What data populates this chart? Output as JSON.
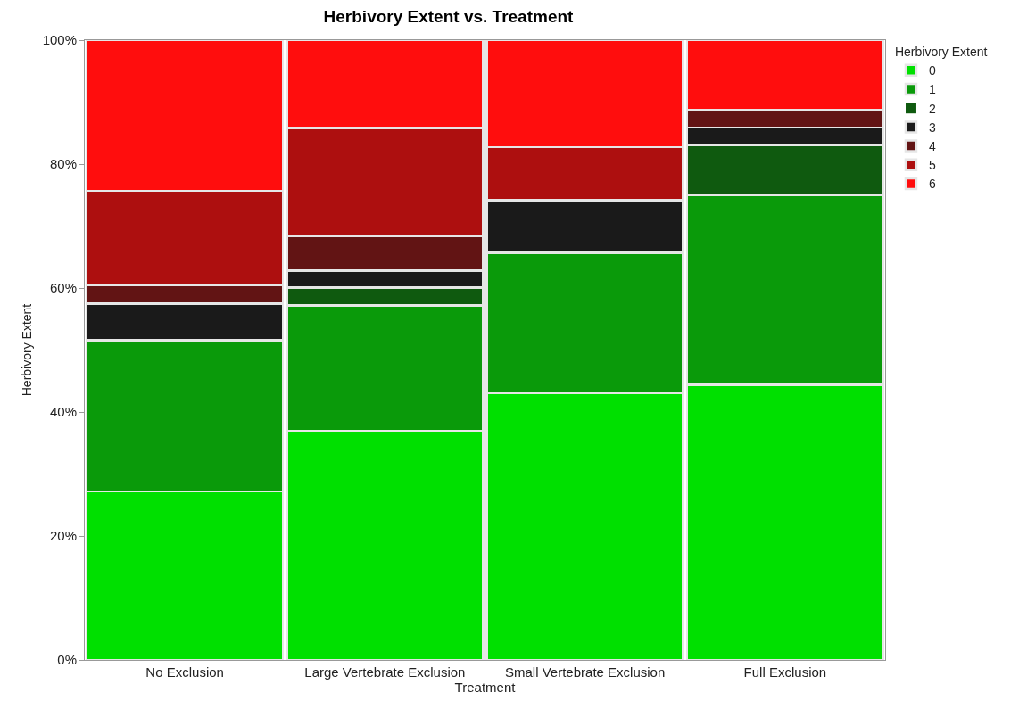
{
  "chart_data": {
    "type": "bar",
    "stacked": true,
    "title": "Herbivory Extent vs. Treatment",
    "xlabel": "Treatment",
    "ylabel": "Herbivory Extent",
    "legend_title": "Herbivory Extent",
    "legend": "top right",
    "grid": false,
    "categories": [
      "No Exclusion",
      "Large Vertebrate Exclusion",
      "Small Vertebrate Exclusion",
      "Full Exclusion"
    ],
    "ylim": [
      0,
      100
    ],
    "yticks": [
      {
        "value": 0,
        "label": "0%"
      },
      {
        "value": 20,
        "label": "20%"
      },
      {
        "value": 40,
        "label": "40%"
      },
      {
        "value": 60,
        "label": "60%"
      },
      {
        "value": 80,
        "label": "80%"
      },
      {
        "value": 100,
        "label": "100%"
      }
    ],
    "series": [
      {
        "name": "0",
        "color": "#00e000",
        "values": [
          27.2,
          37.0,
          43.0,
          44.4
        ]
      },
      {
        "name": "1",
        "color": "#0a9a0a",
        "values": [
          24.4,
          20.2,
          22.7,
          30.6
        ]
      },
      {
        "name": "2",
        "color": "#0f5a0f",
        "values": [
          0,
          2.9,
          0,
          8.1
        ]
      },
      {
        "name": "3",
        "color": "#1a1a1a",
        "values": [
          5.9,
          2.7,
          8.5,
          2.8
        ]
      },
      {
        "name": "4",
        "color": "#621414",
        "values": [
          2.9,
          5.6,
          0,
          2.9
        ]
      },
      {
        "name": "5",
        "color": "#ad0f0f",
        "values": [
          15.3,
          17.4,
          8.5,
          0
        ]
      },
      {
        "name": "6",
        "color": "#ff0d0d",
        "values": [
          24.3,
          14.2,
          17.3,
          11.2
        ]
      }
    ]
  }
}
